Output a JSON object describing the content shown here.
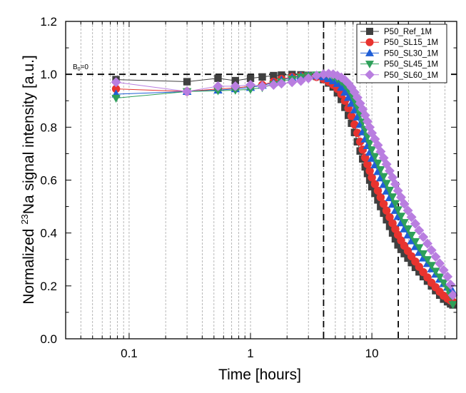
{
  "chart_data": {
    "type": "scatter",
    "xscale": "log",
    "xlim": [
      0.03,
      50
    ],
    "ylim": [
      0.0,
      1.2
    ],
    "xlabel": "Time [hours]",
    "ylabel_prefix": "Normalized ",
    "ylabel_sup": "23",
    "ylabel_suffix": "Na signal intensity [a.u.]",
    "xticks": [
      {
        "value": 0.1,
        "label": "0.1"
      },
      {
        "value": 1,
        "label": "1"
      },
      {
        "value": 10,
        "label": "10"
      }
    ],
    "yticks": [
      {
        "value": 0.0,
        "label": "0.0"
      },
      {
        "value": 0.2,
        "label": "0.2"
      },
      {
        "value": 0.4,
        "label": "0.4"
      },
      {
        "value": 0.6,
        "label": "0.6"
      },
      {
        "value": 0.8,
        "label": "0.8"
      },
      {
        "value": 1.0,
        "label": "1.0"
      },
      {
        "value": 1.2,
        "label": "1.2"
      }
    ],
    "grid": "x-minor-dashed",
    "reference_lines": {
      "horizontal_y": 1.0,
      "vertical_x": [
        4,
        16.5
      ]
    },
    "annotation": {
      "main": "B",
      "sub": "0",
      "rest": "=0"
    },
    "legend_position": "top-right",
    "series": [
      {
        "name": "P50_Ref_1M",
        "color": "#404040",
        "marker": "square",
        "points": [
          [
            0.078,
            0.98
          ],
          [
            0.3,
            0.972
          ],
          [
            0.54,
            0.985
          ],
          [
            0.75,
            0.976
          ],
          [
            1.0,
            0.985
          ],
          [
            1.25,
            0.99
          ],
          [
            1.55,
            0.995
          ],
          [
            1.8,
            0.997
          ],
          [
            2.2,
            0.999
          ],
          [
            2.6,
            0.998
          ],
          [
            3.0,
            0.996
          ],
          [
            3.5,
            0.992
          ],
          [
            4.0,
            0.98
          ],
          [
            4.4,
            0.967
          ],
          [
            4.8,
            0.952
          ],
          [
            5.2,
            0.93
          ],
          [
            5.6,
            0.905
          ],
          [
            6.0,
            0.875
          ],
          [
            6.4,
            0.845
          ],
          [
            6.8,
            0.815
          ],
          [
            7.2,
            0.78
          ],
          [
            7.6,
            0.745
          ],
          [
            8.0,
            0.71
          ],
          [
            8.4,
            0.68
          ],
          [
            8.8,
            0.65
          ],
          [
            9.2,
            0.625
          ],
          [
            9.6,
            0.6
          ],
          [
            10.0,
            0.575
          ],
          [
            10.6,
            0.55
          ],
          [
            11.2,
            0.525
          ],
          [
            11.8,
            0.5
          ],
          [
            12.5,
            0.475
          ],
          [
            13.2,
            0.45
          ],
          [
            14.0,
            0.425
          ],
          [
            14.8,
            0.4
          ],
          [
            15.6,
            0.378
          ],
          [
            16.4,
            0.355
          ],
          [
            17.4,
            0.338
          ],
          [
            18.5,
            0.322
          ],
          [
            19.8,
            0.305
          ],
          [
            21.2,
            0.288
          ],
          [
            22.8,
            0.27
          ],
          [
            24.5,
            0.253
          ],
          [
            26.5,
            0.235
          ],
          [
            28.7,
            0.218
          ],
          [
            31.0,
            0.2
          ],
          [
            33.5,
            0.182
          ],
          [
            36.2,
            0.165
          ],
          [
            39.0,
            0.15
          ],
          [
            42.0,
            0.14
          ],
          [
            44.5,
            0.132
          ],
          [
            46.5,
            0.128
          ]
        ]
      },
      {
        "name": "P50_SL15_1M",
        "color": "#e8332f",
        "marker": "circle",
        "points": [
          [
            0.078,
            0.945
          ],
          [
            0.3,
            0.935
          ],
          [
            0.54,
            0.945
          ],
          [
            0.75,
            0.948
          ],
          [
            1.0,
            0.955
          ],
          [
            1.25,
            0.96
          ],
          [
            1.55,
            0.972
          ],
          [
            1.8,
            0.982
          ],
          [
            2.2,
            0.99
          ],
          [
            2.6,
            0.993
          ],
          [
            3.0,
            0.994
          ],
          [
            3.5,
            0.99
          ],
          [
            4.0,
            0.982
          ],
          [
            4.4,
            0.972
          ],
          [
            4.8,
            0.96
          ],
          [
            5.2,
            0.945
          ],
          [
            5.6,
            0.925
          ],
          [
            6.0,
            0.9
          ],
          [
            6.4,
            0.872
          ],
          [
            6.8,
            0.842
          ],
          [
            7.2,
            0.81
          ],
          [
            7.6,
            0.778
          ],
          [
            8.0,
            0.745
          ],
          [
            8.4,
            0.715
          ],
          [
            8.8,
            0.685
          ],
          [
            9.2,
            0.66
          ],
          [
            9.6,
            0.635
          ],
          [
            10.0,
            0.61
          ],
          [
            10.6,
            0.585
          ],
          [
            11.2,
            0.56
          ],
          [
            11.8,
            0.535
          ],
          [
            12.5,
            0.51
          ],
          [
            13.2,
            0.485
          ],
          [
            14.0,
            0.46
          ],
          [
            14.8,
            0.437
          ],
          [
            15.6,
            0.415
          ],
          [
            16.4,
            0.393
          ],
          [
            17.4,
            0.372
          ],
          [
            18.5,
            0.352
          ],
          [
            19.8,
            0.332
          ],
          [
            21.2,
            0.312
          ],
          [
            22.8,
            0.292
          ],
          [
            24.5,
            0.272
          ],
          [
            26.5,
            0.252
          ],
          [
            28.7,
            0.232
          ],
          [
            31.0,
            0.212
          ],
          [
            33.5,
            0.195
          ],
          [
            36.2,
            0.178
          ],
          [
            39.0,
            0.163
          ],
          [
            42.0,
            0.152
          ],
          [
            44.5,
            0.145
          ],
          [
            46.5,
            0.14
          ]
        ]
      },
      {
        "name": "P50_SL30_1M",
        "color": "#1f5ed6",
        "marker": "triangle-up",
        "points": [
          [
            0.078,
            0.925
          ],
          [
            0.3,
            0.935
          ],
          [
            0.54,
            0.94
          ],
          [
            0.75,
            0.945
          ],
          [
            1.0,
            0.95
          ],
          [
            1.25,
            0.958
          ],
          [
            1.55,
            0.968
          ],
          [
            1.8,
            0.978
          ],
          [
            2.2,
            0.988
          ],
          [
            2.6,
            0.993
          ],
          [
            3.0,
            0.995
          ],
          [
            3.5,
            0.995
          ],
          [
            4.0,
            0.99
          ],
          [
            4.4,
            0.983
          ],
          [
            4.8,
            0.975
          ],
          [
            5.2,
            0.965
          ],
          [
            5.6,
            0.95
          ],
          [
            6.0,
            0.932
          ],
          [
            6.4,
            0.912
          ],
          [
            6.8,
            0.89
          ],
          [
            7.2,
            0.865
          ],
          [
            7.6,
            0.838
          ],
          [
            8.0,
            0.81
          ],
          [
            8.4,
            0.782
          ],
          [
            8.8,
            0.755
          ],
          [
            9.2,
            0.73
          ],
          [
            9.6,
            0.705
          ],
          [
            10.0,
            0.682
          ],
          [
            10.6,
            0.657
          ],
          [
            11.2,
            0.632
          ],
          [
            11.8,
            0.608
          ],
          [
            12.5,
            0.583
          ],
          [
            13.2,
            0.558
          ],
          [
            14.0,
            0.533
          ],
          [
            14.8,
            0.508
          ],
          [
            15.6,
            0.485
          ],
          [
            16.4,
            0.462
          ],
          [
            17.4,
            0.438
          ],
          [
            18.5,
            0.415
          ],
          [
            19.8,
            0.392
          ],
          [
            21.2,
            0.37
          ],
          [
            22.8,
            0.348
          ],
          [
            24.5,
            0.326
          ],
          [
            26.5,
            0.305
          ],
          [
            28.7,
            0.284
          ],
          [
            31.0,
            0.264
          ],
          [
            33.5,
            0.244
          ],
          [
            36.2,
            0.225
          ],
          [
            39.0,
            0.208
          ],
          [
            42.0,
            0.195
          ],
          [
            44.5,
            0.185
          ],
          [
            46.5,
            0.178
          ]
        ]
      },
      {
        "name": "P50_SL45_1M",
        "color": "#2ea05a",
        "marker": "triangle-down",
        "points": [
          [
            0.078,
            0.91
          ],
          [
            0.3,
            0.935
          ],
          [
            0.54,
            0.938
          ],
          [
            0.75,
            0.94
          ],
          [
            1.0,
            0.943
          ],
          [
            1.25,
            0.95
          ],
          [
            1.55,
            0.962
          ],
          [
            1.8,
            0.972
          ],
          [
            2.2,
            0.982
          ],
          [
            2.6,
            0.99
          ],
          [
            3.0,
            0.995
          ],
          [
            3.5,
            0.998
          ],
          [
            4.0,
            0.998
          ],
          [
            4.4,
            0.995
          ],
          [
            4.8,
            0.99
          ],
          [
            5.2,
            0.982
          ],
          [
            5.6,
            0.972
          ],
          [
            6.0,
            0.958
          ],
          [
            6.4,
            0.942
          ],
          [
            6.8,
            0.922
          ],
          [
            7.2,
            0.9
          ],
          [
            7.6,
            0.875
          ],
          [
            8.0,
            0.848
          ],
          [
            8.4,
            0.82
          ],
          [
            8.8,
            0.792
          ],
          [
            9.2,
            0.765
          ],
          [
            9.6,
            0.74
          ],
          [
            10.0,
            0.715
          ],
          [
            10.6,
            0.69
          ],
          [
            11.2,
            0.665
          ],
          [
            11.8,
            0.64
          ],
          [
            12.5,
            0.614
          ],
          [
            13.2,
            0.588
          ],
          [
            14.0,
            0.562
          ],
          [
            14.8,
            0.537
          ],
          [
            15.6,
            0.512
          ],
          [
            16.4,
            0.488
          ],
          [
            17.4,
            0.464
          ],
          [
            18.5,
            0.44
          ],
          [
            19.8,
            0.416
          ],
          [
            21.2,
            0.392
          ],
          [
            22.8,
            0.368
          ],
          [
            24.5,
            0.345
          ],
          [
            26.5,
            0.322
          ],
          [
            28.7,
            0.3
          ],
          [
            31.0,
            0.278
          ],
          [
            33.5,
            0.256
          ],
          [
            36.2,
            0.234
          ],
          [
            39.0,
            0.212
          ],
          [
            42.0,
            0.19
          ],
          [
            44.5,
            0.165
          ],
          [
            46.5,
            0.13
          ]
        ]
      },
      {
        "name": "P50_SL60_1M",
        "color": "#b97ee0",
        "marker": "diamond",
        "points": [
          [
            0.078,
            0.97
          ],
          [
            0.3,
            0.935
          ],
          [
            0.54,
            0.955
          ],
          [
            0.75,
            0.955
          ],
          [
            1.0,
            0.96
          ],
          [
            1.25,
            0.955
          ],
          [
            1.55,
            0.96
          ],
          [
            1.8,
            0.965
          ],
          [
            2.2,
            0.97
          ],
          [
            2.6,
            0.975
          ],
          [
            3.0,
            0.985
          ],
          [
            3.5,
            0.995
          ],
          [
            4.0,
            1.0
          ],
          [
            4.4,
            1.002
          ],
          [
            4.8,
            1.0
          ],
          [
            5.2,
            0.995
          ],
          [
            5.6,
            0.988
          ],
          [
            6.0,
            0.978
          ],
          [
            6.4,
            0.965
          ],
          [
            6.8,
            0.95
          ],
          [
            7.2,
            0.932
          ],
          [
            7.6,
            0.912
          ],
          [
            8.0,
            0.89
          ],
          [
            8.4,
            0.868
          ],
          [
            8.8,
            0.845
          ],
          [
            9.2,
            0.822
          ],
          [
            9.6,
            0.8
          ],
          [
            10.0,
            0.778
          ],
          [
            10.6,
            0.755
          ],
          [
            11.2,
            0.732
          ],
          [
            11.8,
            0.708
          ],
          [
            12.5,
            0.684
          ],
          [
            13.2,
            0.66
          ],
          [
            14.0,
            0.635
          ],
          [
            14.8,
            0.61
          ],
          [
            15.6,
            0.585
          ],
          [
            16.4,
            0.56
          ],
          [
            17.4,
            0.535
          ],
          [
            18.5,
            0.51
          ],
          [
            19.8,
            0.485
          ],
          [
            21.2,
            0.46
          ],
          [
            22.8,
            0.435
          ],
          [
            24.5,
            0.41
          ],
          [
            26.5,
            0.385
          ],
          [
            28.7,
            0.36
          ],
          [
            31.0,
            0.335
          ],
          [
            33.5,
            0.31
          ],
          [
            36.2,
            0.285
          ],
          [
            39.0,
            0.26
          ],
          [
            42.0,
            0.235
          ],
          [
            44.5,
            0.205
          ],
          [
            46.5,
            0.165
          ]
        ]
      }
    ]
  }
}
